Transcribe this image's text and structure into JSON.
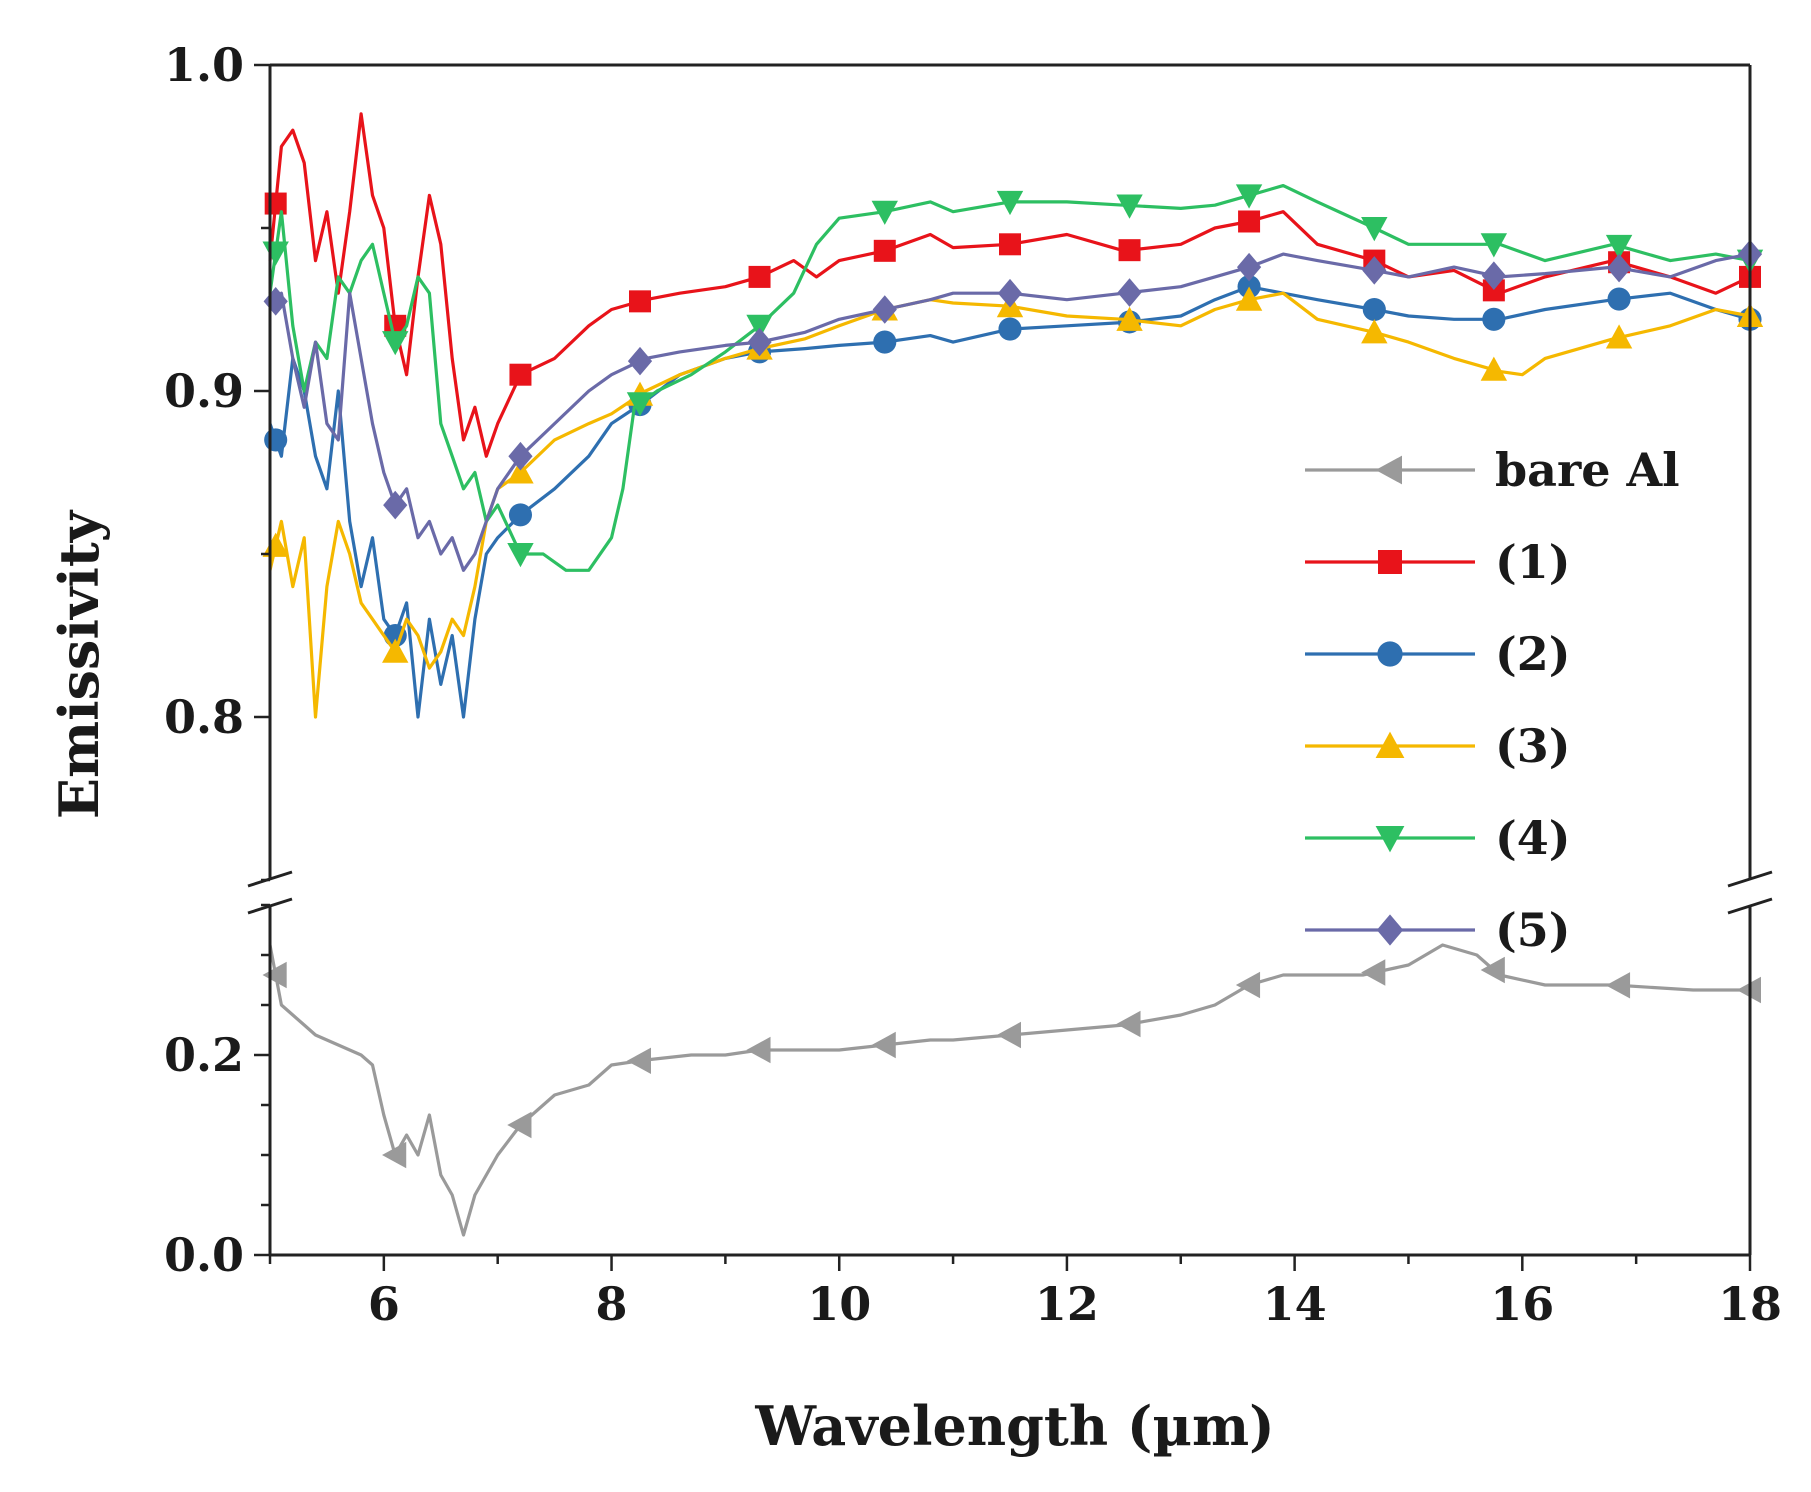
{
  "chart_data": {
    "type": "line",
    "xlabel": "Wavelength (µm)",
    "ylabel": "Emissivity",
    "xlim": [
      5,
      18
    ],
    "broken_y_axis": true,
    "y_segments": [
      {
        "ylim": [
          0.0,
          0.35
        ],
        "ticks": [
          0.0,
          0.2
        ]
      },
      {
        "ylim": [
          0.75,
          1.0
        ],
        "ticks": [
          0.8,
          0.9,
          1.0
        ]
      }
    ],
    "x_ticks": [
      6,
      8,
      10,
      12,
      14,
      16,
      18
    ],
    "x_tick_labels": [
      "6",
      "8",
      "10",
      "12",
      "14",
      "16",
      "18"
    ],
    "y_tick_labels": [
      "0.0",
      "0.2",
      "0.8",
      "0.9",
      "1.0"
    ],
    "legend_position": "right",
    "series": [
      {
        "name": "bare Al",
        "color": "#9a9a9a",
        "marker": "triangle-left",
        "x": [
          5.0,
          5.1,
          5.2,
          5.3,
          5.4,
          5.6,
          5.8,
          5.9,
          6.0,
          6.1,
          6.2,
          6.3,
          6.4,
          6.5,
          6.6,
          6.7,
          6.8,
          7.0,
          7.2,
          7.5,
          7.8,
          8.0,
          8.3,
          8.7,
          9.0,
          9.3,
          9.7,
          10.0,
          10.4,
          10.8,
          11.0,
          11.5,
          12.0,
          12.5,
          13.0,
          13.3,
          13.6,
          13.9,
          14.2,
          14.6,
          15.0,
          15.3,
          15.6,
          15.8,
          16.2,
          16.8,
          17.5,
          18.0
        ],
        "y": [
          0.31,
          0.25,
          0.24,
          0.23,
          0.22,
          0.21,
          0.2,
          0.19,
          0.14,
          0.1,
          0.12,
          0.1,
          0.14,
          0.08,
          0.06,
          0.02,
          0.06,
          0.1,
          0.13,
          0.16,
          0.17,
          0.19,
          0.195,
          0.2,
          0.2,
          0.205,
          0.205,
          0.205,
          0.21,
          0.215,
          0.215,
          0.22,
          0.225,
          0.23,
          0.24,
          0.25,
          0.27,
          0.28,
          0.28,
          0.28,
          0.29,
          0.31,
          0.3,
          0.28,
          0.27,
          0.27,
          0.265,
          0.265
        ],
        "marker_x": [
          5.05,
          6.1,
          7.2,
          8.25,
          9.3,
          10.4,
          11.5,
          12.55,
          13.6,
          14.7,
          15.75,
          16.85,
          18.0
        ]
      },
      {
        "name": "(1)",
        "color": "#e8131a",
        "marker": "square",
        "x": [
          5.0,
          5.1,
          5.2,
          5.3,
          5.4,
          5.5,
          5.6,
          5.7,
          5.8,
          5.9,
          6.0,
          6.1,
          6.2,
          6.3,
          6.4,
          6.5,
          6.6,
          6.7,
          6.8,
          6.9,
          7.0,
          7.2,
          7.5,
          7.8,
          8.0,
          8.3,
          8.6,
          9.0,
          9.3,
          9.6,
          9.8,
          10.0,
          10.4,
          10.8,
          11.0,
          11.5,
          12.0,
          12.5,
          13.0,
          13.3,
          13.6,
          13.9,
          14.2,
          14.7,
          15.0,
          15.4,
          15.8,
          16.2,
          16.8,
          17.3,
          17.7,
          18.0
        ],
        "y": [
          0.94,
          0.975,
          0.98,
          0.97,
          0.94,
          0.955,
          0.93,
          0.955,
          0.985,
          0.96,
          0.95,
          0.92,
          0.905,
          0.935,
          0.96,
          0.945,
          0.91,
          0.885,
          0.895,
          0.88,
          0.89,
          0.905,
          0.91,
          0.92,
          0.925,
          0.928,
          0.93,
          0.932,
          0.935,
          0.94,
          0.935,
          0.94,
          0.943,
          0.948,
          0.944,
          0.945,
          0.948,
          0.943,
          0.945,
          0.95,
          0.952,
          0.955,
          0.945,
          0.94,
          0.935,
          0.937,
          0.93,
          0.935,
          0.94,
          0.935,
          0.93,
          0.935
        ],
        "marker_x": [
          5.05,
          6.1,
          7.2,
          8.25,
          9.3,
          10.4,
          11.5,
          12.55,
          13.6,
          14.7,
          15.75,
          16.85,
          18.0
        ]
      },
      {
        "name": "(2)",
        "color": "#2e6fb0",
        "marker": "circle",
        "x": [
          5.0,
          5.1,
          5.2,
          5.3,
          5.4,
          5.5,
          5.6,
          5.7,
          5.8,
          5.9,
          6.0,
          6.1,
          6.2,
          6.3,
          6.4,
          6.5,
          6.6,
          6.7,
          6.8,
          6.9,
          7.0,
          7.2,
          7.5,
          7.8,
          8.0,
          8.3,
          8.6,
          9.0,
          9.3,
          9.7,
          10.0,
          10.4,
          10.8,
          11.0,
          11.5,
          12.0,
          12.5,
          13.0,
          13.3,
          13.6,
          13.9,
          14.2,
          14.7,
          15.0,
          15.4,
          15.8,
          16.2,
          16.8,
          17.3,
          17.7,
          18.0
        ],
        "y": [
          0.89,
          0.88,
          0.91,
          0.9,
          0.88,
          0.87,
          0.9,
          0.86,
          0.84,
          0.855,
          0.83,
          0.825,
          0.835,
          0.8,
          0.83,
          0.81,
          0.825,
          0.8,
          0.83,
          0.85,
          0.855,
          0.862,
          0.87,
          0.88,
          0.89,
          0.897,
          0.905,
          0.91,
          0.912,
          0.913,
          0.914,
          0.915,
          0.917,
          0.915,
          0.919,
          0.92,
          0.921,
          0.923,
          0.928,
          0.932,
          0.93,
          0.928,
          0.925,
          0.923,
          0.922,
          0.922,
          0.925,
          0.928,
          0.93,
          0.925,
          0.922
        ],
        "marker_x": [
          5.05,
          6.1,
          7.2,
          8.25,
          9.3,
          10.4,
          11.5,
          12.55,
          13.6,
          14.7,
          15.75,
          16.85,
          18.0
        ]
      },
      {
        "name": "(3)",
        "color": "#f5b800",
        "marker": "triangle-up",
        "x": [
          5.0,
          5.1,
          5.2,
          5.3,
          5.4,
          5.5,
          5.6,
          5.7,
          5.8,
          5.9,
          6.0,
          6.1,
          6.2,
          6.3,
          6.4,
          6.5,
          6.6,
          6.7,
          6.8,
          6.9,
          7.0,
          7.2,
          7.5,
          7.8,
          8.0,
          8.3,
          8.6,
          9.0,
          9.3,
          9.7,
          10.0,
          10.4,
          10.8,
          11.0,
          11.5,
          12.0,
          12.5,
          13.0,
          13.3,
          13.6,
          13.9,
          14.2,
          14.7,
          15.0,
          15.4,
          15.8,
          16.0,
          16.2,
          16.8,
          17.3,
          17.7,
          18.0
        ],
        "y": [
          0.845,
          0.86,
          0.84,
          0.855,
          0.8,
          0.84,
          0.86,
          0.85,
          0.835,
          0.83,
          0.825,
          0.82,
          0.83,
          0.825,
          0.815,
          0.82,
          0.83,
          0.825,
          0.84,
          0.86,
          0.87,
          0.875,
          0.885,
          0.89,
          0.893,
          0.9,
          0.905,
          0.91,
          0.913,
          0.916,
          0.92,
          0.925,
          0.928,
          0.927,
          0.926,
          0.923,
          0.922,
          0.92,
          0.925,
          0.928,
          0.93,
          0.922,
          0.918,
          0.915,
          0.91,
          0.906,
          0.905,
          0.91,
          0.916,
          0.92,
          0.925,
          0.923
        ],
        "marker_x": [
          5.05,
          6.1,
          7.2,
          8.25,
          9.3,
          10.4,
          11.5,
          12.55,
          13.6,
          14.7,
          15.75,
          16.85,
          18.0
        ]
      },
      {
        "name": "(4)",
        "color": "#2dbf62",
        "marker": "triangle-down",
        "x": [
          5.0,
          5.1,
          5.2,
          5.3,
          5.4,
          5.5,
          5.6,
          5.7,
          5.8,
          5.9,
          6.0,
          6.1,
          6.2,
          6.3,
          6.4,
          6.5,
          6.6,
          6.7,
          6.8,
          6.9,
          7.0,
          7.2,
          7.4,
          7.6,
          7.8,
          8.0,
          8.1,
          8.2,
          8.4,
          8.7,
          9.0,
          9.3,
          9.6,
          9.8,
          10.0,
          10.4,
          10.8,
          11.0,
          11.5,
          12.0,
          12.5,
          13.0,
          13.3,
          13.6,
          13.9,
          14.2,
          14.7,
          15.0,
          15.4,
          15.8,
          16.2,
          16.8,
          17.3,
          17.7,
          18.0
        ],
        "y": [
          0.93,
          0.955,
          0.92,
          0.9,
          0.915,
          0.91,
          0.935,
          0.93,
          0.94,
          0.945,
          0.93,
          0.915,
          0.92,
          0.935,
          0.93,
          0.89,
          0.88,
          0.87,
          0.875,
          0.86,
          0.865,
          0.85,
          0.85,
          0.845,
          0.845,
          0.855,
          0.87,
          0.895,
          0.9,
          0.905,
          0.912,
          0.92,
          0.93,
          0.945,
          0.953,
          0.955,
          0.958,
          0.955,
          0.958,
          0.958,
          0.957,
          0.956,
          0.957,
          0.96,
          0.963,
          0.958,
          0.95,
          0.945,
          0.945,
          0.945,
          0.94,
          0.945,
          0.94,
          0.942,
          0.94
        ],
        "marker_x": [
          5.05,
          6.1,
          7.2,
          8.25,
          9.3,
          10.4,
          11.5,
          12.55,
          13.6,
          14.7,
          15.75,
          16.85,
          18.0
        ]
      },
      {
        "name": "(5)",
        "color": "#6a6aa8",
        "marker": "diamond",
        "x": [
          5.0,
          5.1,
          5.2,
          5.3,
          5.4,
          5.5,
          5.6,
          5.7,
          5.8,
          5.9,
          6.0,
          6.1,
          6.2,
          6.3,
          6.4,
          6.5,
          6.6,
          6.7,
          6.8,
          6.9,
          7.0,
          7.2,
          7.5,
          7.8,
          8.0,
          8.3,
          8.6,
          9.0,
          9.3,
          9.7,
          10.0,
          10.4,
          10.8,
          11.0,
          11.5,
          12.0,
          12.5,
          13.0,
          13.3,
          13.6,
          13.9,
          14.2,
          14.7,
          15.0,
          15.4,
          15.8,
          16.2,
          16.8,
          17.3,
          17.7,
          18.0
        ],
        "y": [
          0.925,
          0.93,
          0.91,
          0.895,
          0.915,
          0.89,
          0.885,
          0.93,
          0.91,
          0.89,
          0.875,
          0.865,
          0.87,
          0.855,
          0.86,
          0.85,
          0.855,
          0.845,
          0.85,
          0.86,
          0.87,
          0.88,
          0.89,
          0.9,
          0.905,
          0.91,
          0.912,
          0.914,
          0.915,
          0.918,
          0.922,
          0.925,
          0.928,
          0.93,
          0.93,
          0.928,
          0.93,
          0.932,
          0.935,
          0.938,
          0.942,
          0.94,
          0.937,
          0.935,
          0.938,
          0.935,
          0.936,
          0.938,
          0.935,
          0.94,
          0.942
        ],
        "marker_x": [
          5.05,
          6.1,
          7.2,
          8.25,
          9.3,
          10.4,
          11.5,
          12.55,
          13.6,
          14.7,
          15.75,
          16.85,
          18.0
        ]
      }
    ]
  }
}
